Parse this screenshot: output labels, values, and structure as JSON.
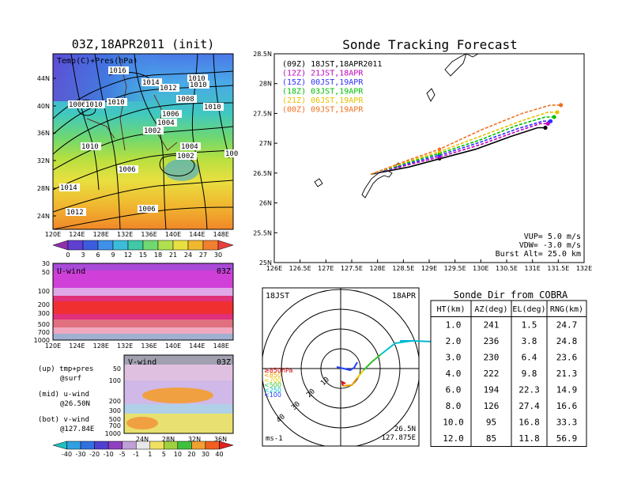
{
  "left": {
    "title": "03Z,18APR2011 (init)",
    "map": {
      "label": "Temp(C)+Pres(hPa)",
      "lat_ticks": [
        "44N",
        "40N",
        "36N",
        "32N",
        "28N",
        "24N"
      ],
      "lon_ticks": [
        "120E",
        "124E",
        "128E",
        "132E",
        "136E",
        "140E",
        "144E",
        "148E"
      ],
      "isobar_labels": [
        "1016",
        "1014",
        "1012",
        "1010",
        "1010",
        "1008",
        "1010",
        "1006",
        "1010",
        "1010",
        "1006",
        "1004",
        "1002",
        "1004",
        "1002",
        "1010",
        "1006",
        "1014",
        "1012",
        "1006",
        "100"
      ]
    },
    "temp_colorbar": [
      "0",
      "3",
      "6",
      "9",
      "12",
      "15",
      "18",
      "21",
      "24",
      "27",
      "30"
    ],
    "uwind": {
      "label": "U-wind",
      "time": "03Z",
      "p_ticks": [
        "30",
        "50",
        "100",
        "200",
        "300",
        "500",
        "700",
        "1000"
      ],
      "lon_ticks": [
        "120E",
        "124E",
        "128E",
        "132E",
        "136E",
        "140E",
        "144E",
        "148E"
      ]
    },
    "vwind": {
      "label": "V-wind",
      "time": "03Z",
      "p_ticks": [
        "50",
        "100",
        "200",
        "300",
        "500",
        "700",
        "1000"
      ],
      "lat_ticks": [
        "24N",
        "28N",
        "32N",
        "36N"
      ]
    },
    "notes": [
      {
        "a": "(up) tmp+pres",
        "b": "@surf"
      },
      {
        "a": "(mid) u-wind",
        "b": "@26.50N"
      },
      {
        "a": "(bot) v-wind",
        "b": "@127.84E"
      }
    ],
    "wind_colorbar": [
      "-40",
      "-30",
      "-20",
      "-10",
      "-5",
      "-1",
      "1",
      "5",
      "10",
      "20",
      "30",
      "40"
    ]
  },
  "tracking": {
    "title": "Sonde Tracking Forecast",
    "params": [
      "VUP= 5.0 m/s",
      "VDW= -3.0 m/s",
      "Burst Alt= 25.0 km"
    ]
  },
  "polar": {
    "left_label": "18JST",
    "right_label": "18APR",
    "units": "ms-1",
    "pos1": "26.5N",
    "pos2": "127.875E",
    "legend": [
      {
        "t": "≥850hPa",
        "c": "#d40000"
      },
      {
        "t": "<850",
        "c": "#f0a000"
      },
      {
        "t": "<700",
        "c": "#e6d200"
      },
      {
        "t": "<500",
        "c": "#30c030"
      },
      {
        "t": "<250",
        "c": "#00c0d0"
      },
      {
        "t": "<100",
        "c": "#2040ff"
      }
    ],
    "ring_labels": [
      "10",
      "20",
      "30",
      "40"
    ]
  },
  "sonde_dir": {
    "title": "Sonde Dir from COBRA",
    "headers": [
      "HT(km)",
      "AZ(deg)",
      "EL(deg)",
      "RNG(km)"
    ],
    "rows": [
      [
        "1.0",
        "241",
        "1.5",
        "24.7"
      ],
      [
        "2.0",
        "236",
        "3.8",
        "24.8"
      ],
      [
        "3.0",
        "230",
        "6.4",
        "23.6"
      ],
      [
        "4.0",
        "222",
        "9.8",
        "21.3"
      ],
      [
        "6.0",
        "194",
        "22.3",
        "14.9"
      ],
      [
        "8.0",
        "126",
        "27.4",
        "16.6"
      ],
      [
        "10.0",
        "95",
        "16.8",
        "33.3"
      ],
      [
        "12.0",
        "85",
        "11.8",
        "56.9"
      ]
    ]
  },
  "chart_data": [
    {
      "type": "line",
      "title": "Sonde Tracking Forecast",
      "xlabel": "",
      "ylabel": "",
      "x_ticks": [
        "126E",
        "126.5E",
        "127E",
        "127.5E",
        "128E",
        "128.5E",
        "129E",
        "129.5E",
        "130E",
        "130.5E",
        "131E",
        "131.5E",
        "132E"
      ],
      "y_ticks": [
        "25N",
        "25.5N",
        "26N",
        "26.5N",
        "27N",
        "27.5N",
        "28N",
        "28.5N"
      ],
      "xlim": [
        126,
        132
      ],
      "ylim": [
        25,
        28.5
      ],
      "legend_position": "top-left",
      "series": [
        {
          "name": "(09Z)  18JST,18APR2011",
          "color": "#000000",
          "x": [
            127.87,
            128.6,
            129.2,
            129.9,
            130.6,
            131.1,
            131.25
          ],
          "y": [
            26.48,
            26.6,
            26.74,
            26.9,
            27.12,
            27.26,
            27.26
          ]
        },
        {
          "name": "(12Z)  21JST,18APR",
          "color": "#c000c0",
          "x": [
            127.87,
            128.6,
            129.2,
            130.0,
            130.7,
            131.15,
            131.3
          ],
          "y": [
            26.48,
            26.64,
            26.77,
            26.98,
            27.2,
            27.33,
            27.33
          ]
        },
        {
          "name": "(15Z)  00JST,19APR",
          "color": "#3030ff",
          "x": [
            127.87,
            128.6,
            129.2,
            130.0,
            130.7,
            131.2,
            131.35
          ],
          "y": [
            26.48,
            26.66,
            26.8,
            27.02,
            27.24,
            27.37,
            27.37
          ]
        },
        {
          "name": "(18Z)  03JST,19APR",
          "color": "#00c000",
          "x": [
            127.87,
            128.6,
            129.2,
            130.0,
            130.7,
            131.25,
            131.42
          ],
          "y": [
            26.48,
            26.68,
            26.83,
            27.06,
            27.3,
            27.44,
            27.44
          ]
        },
        {
          "name": "(21Z)  06JST,19APR",
          "color": "#e8c000",
          "x": [
            127.87,
            128.6,
            129.2,
            130.0,
            130.8,
            131.3,
            131.48
          ],
          "y": [
            26.48,
            26.7,
            26.86,
            27.12,
            27.38,
            27.52,
            27.52
          ]
        },
        {
          "name": "(00Z)  09JST,19APR",
          "color": "#f07020",
          "x": [
            127.87,
            128.6,
            129.2,
            130.0,
            130.8,
            131.35,
            131.55
          ],
          "y": [
            26.48,
            26.72,
            26.9,
            27.22,
            27.5,
            27.64,
            27.64
          ]
        }
      ]
    }
  ]
}
